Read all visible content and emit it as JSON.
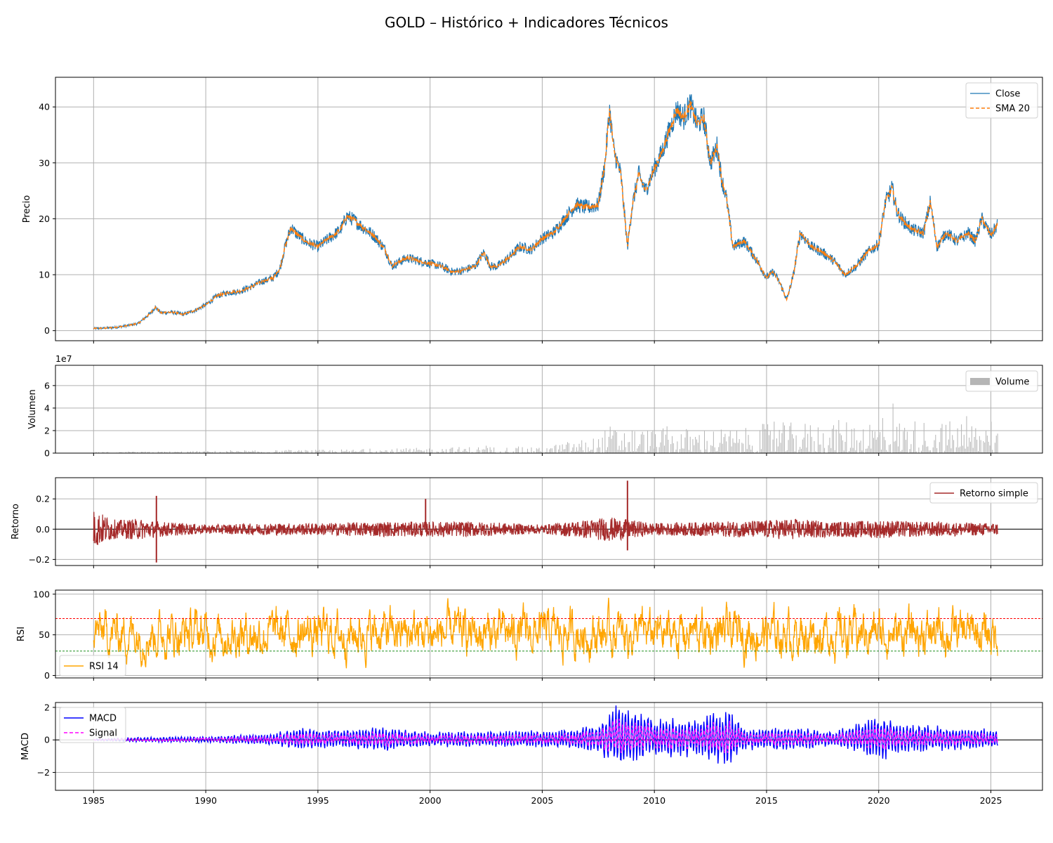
{
  "figure": {
    "title": "GOLD – Histórico + Indicadores Técnicos"
  },
  "chart_data": [
    {
      "type": "line",
      "name": "price",
      "ylabel": "Precio",
      "xlim": [
        1983.3,
        2027.3
      ],
      "ylim": [
        -1.8,
        45.3
      ],
      "yticks": [
        0,
        10,
        20,
        30,
        40
      ],
      "xticks": [
        1985,
        1990,
        1995,
        2000,
        2005,
        2010,
        2015,
        2020,
        2025
      ],
      "grid": true,
      "legend": "top-right",
      "series": [
        {
          "name": "Close",
          "color": "#1f77b4",
          "style": "solid"
        },
        {
          "name": "SMA 20",
          "color": "#ff7f0e",
          "style": "dashed"
        }
      ],
      "x": [
        1985.0,
        1985.5,
        1986.0,
        1986.5,
        1987.0,
        1987.5,
        1987.75,
        1988.0,
        1988.5,
        1989.0,
        1989.5,
        1990.0,
        1990.5,
        1991.0,
        1991.5,
        1992.0,
        1992.5,
        1993.0,
        1993.3,
        1993.5,
        1993.8,
        1994.0,
        1994.5,
        1995.0,
        1995.5,
        1996.0,
        1996.3,
        1996.6,
        1997.0,
        1997.5,
        1998.0,
        1998.3,
        1998.7,
        1999.0,
        1999.5,
        2000.0,
        2000.5,
        2001.0,
        2001.5,
        2002.0,
        2002.4,
        2002.7,
        2003.0,
        2003.5,
        2004.0,
        2004.5,
        2005.0,
        2005.5,
        2006.0,
        2006.5,
        2007.0,
        2007.5,
        2007.8,
        2008.0,
        2008.2,
        2008.5,
        2008.8,
        2009.0,
        2009.3,
        2009.6,
        2010.0,
        2010.3,
        2010.6,
        2011.0,
        2011.3,
        2011.6,
        2011.9,
        2012.2,
        2012.5,
        2012.8,
        2013.0,
        2013.2,
        2013.5,
        2014.0,
        2014.5,
        2015.0,
        2015.3,
        2015.6,
        2015.9,
        2016.2,
        2016.5,
        2017.0,
        2017.5,
        2018.0,
        2018.5,
        2018.8,
        2019.0,
        2019.5,
        2020.0,
        2020.3,
        2020.6,
        2020.8,
        2021.0,
        2021.5,
        2022.0,
        2022.3,
        2022.6,
        2023.0,
        2023.5,
        2024.0,
        2024.3,
        2024.6,
        2025.0,
        2025.3
      ],
      "close": [
        0.4,
        0.45,
        0.6,
        0.9,
        1.3,
        3.0,
        4.2,
        3.2,
        3.3,
        2.9,
        3.6,
        4.6,
        6.2,
        6.8,
        7.0,
        7.8,
        8.8,
        9.4,
        11.0,
        14.5,
        18.5,
        17.5,
        15.8,
        15.0,
        16.5,
        18.0,
        20.5,
        19.8,
        18.5,
        17.0,
        14.5,
        11.5,
        12.5,
        13.0,
        12.5,
        12.0,
        11.5,
        10.5,
        10.8,
        11.5,
        14.0,
        11.5,
        11.5,
        13.0,
        15.0,
        14.5,
        16.5,
        17.5,
        20.0,
        22.5,
        22.0,
        22.5,
        30.0,
        39.5,
        32.0,
        28.0,
        15.0,
        22.0,
        28.0,
        25.0,
        29.0,
        31.5,
        35.0,
        39.5,
        38.0,
        40.5,
        37.0,
        38.0,
        30.0,
        33.0,
        27.0,
        24.0,
        15.0,
        16.0,
        13.0,
        9.5,
        10.5,
        8.5,
        5.5,
        10.0,
        17.5,
        15.0,
        14.0,
        12.5,
        10.0,
        11.0,
        11.5,
        14.0,
        15.5,
        23.0,
        25.5,
        21.5,
        20.0,
        18.0,
        17.5,
        23.0,
        15.0,
        17.5,
        16.0,
        17.5,
        16.0,
        20.0,
        17.0,
        19.0
      ]
    },
    {
      "type": "bar",
      "name": "volume",
      "ylabel": "Volumen",
      "offset_text": "1e7",
      "ylim": [
        0,
        78000000
      ],
      "yticks": [
        0,
        2,
        4,
        6
      ],
      "grid": true,
      "legend": "top-right",
      "series": [
        {
          "name": "Volume",
          "color": "#a0a0a0"
        }
      ],
      "envelope_x": [
        1985,
        1990,
        1995,
        1998,
        2002,
        2005,
        2006,
        2007.5,
        2008,
        2010,
        2012,
        2014,
        2015,
        2017,
        2020,
        2022,
        2025.3
      ],
      "envelope_peak_e7": [
        0.1,
        0.2,
        0.3,
        0.4,
        0.6,
        0.5,
        1.0,
        1.5,
        2.5,
        2.2,
        2.3,
        2.2,
        2.7,
        2.8,
        3.2,
        3.0,
        2.8
      ],
      "max_e7": 4.4
    },
    {
      "type": "line",
      "name": "returns",
      "ylabel": "Retorno",
      "ylim": [
        -0.24,
        0.34
      ],
      "yticks": [
        -0.2,
        0.0,
        0.2
      ],
      "grid": true,
      "legend": "top-right",
      "series": [
        {
          "name": "Retorno simple",
          "color": "#a52a2a"
        }
      ],
      "envelope_x": [
        1985,
        1986,
        1987,
        1988,
        1990,
        1993,
        1995,
        1998,
        2000,
        2002,
        2005,
        2008,
        2009,
        2010,
        2013,
        2015,
        2016,
        2018,
        2020,
        2022,
        2025.3
      ],
      "envelope_amp": [
        0.13,
        0.06,
        0.07,
        0.05,
        0.03,
        0.04,
        0.04,
        0.05,
        0.05,
        0.05,
        0.03,
        0.08,
        0.06,
        0.04,
        0.05,
        0.06,
        0.07,
        0.05,
        0.06,
        0.05,
        0.04
      ],
      "spikes": [
        {
          "x": 1987.8,
          "y": 0.22
        },
        {
          "x": 1987.8,
          "y": -0.22
        },
        {
          "x": 1999.8,
          "y": 0.2
        },
        {
          "x": 2008.8,
          "y": 0.32
        },
        {
          "x": 2008.8,
          "y": -0.14
        }
      ]
    },
    {
      "type": "line",
      "name": "rsi",
      "ylabel": "RSI",
      "ylim": [
        -3,
        105
      ],
      "yticks": [
        0,
        50,
        100
      ],
      "grid": true,
      "legend": "bottom-left",
      "thresholds": [
        {
          "y": 70,
          "color": "#ff0000",
          "style": "dashed"
        },
        {
          "y": 30,
          "color": "#008000",
          "style": "dashed"
        }
      ],
      "series": [
        {
          "name": "RSI 14",
          "color": "#ffa500"
        }
      ],
      "range": [
        3,
        100
      ],
      "center": 52
    },
    {
      "type": "line",
      "name": "macd",
      "ylabel": "MACD",
      "ylim": [
        -3.1,
        2.3
      ],
      "yticks": [
        -2,
        0,
        2
      ],
      "grid": true,
      "legend": "top-left",
      "series": [
        {
          "name": "MACD",
          "color": "#0000ff",
          "style": "solid"
        },
        {
          "name": "Signal",
          "color": "#ff00ff",
          "style": "dashed"
        }
      ],
      "envelope_x": [
        1985,
        1987,
        1990,
        1993,
        1994,
        1996,
        1998,
        2000,
        2003,
        2006,
        2007.5,
        2008.5,
        2009,
        2010,
        2012,
        2013.3,
        2014,
        2016,
        2018,
        2020.2,
        2021,
        2022,
        2024,
        2025.3
      ],
      "envelope_amp": [
        0.05,
        0.15,
        0.2,
        0.4,
        0.7,
        0.6,
        0.8,
        0.5,
        0.5,
        0.6,
        0.9,
        2.4,
        1.8,
        1.3,
        1.2,
        2.0,
        0.7,
        0.8,
        0.5,
        1.5,
        0.9,
        0.9,
        0.7,
        0.6
      ]
    }
  ],
  "x_ticks": [
    "1985",
    "1990",
    "1995",
    "2000",
    "2005",
    "2010",
    "2015",
    "2020",
    "2025"
  ]
}
